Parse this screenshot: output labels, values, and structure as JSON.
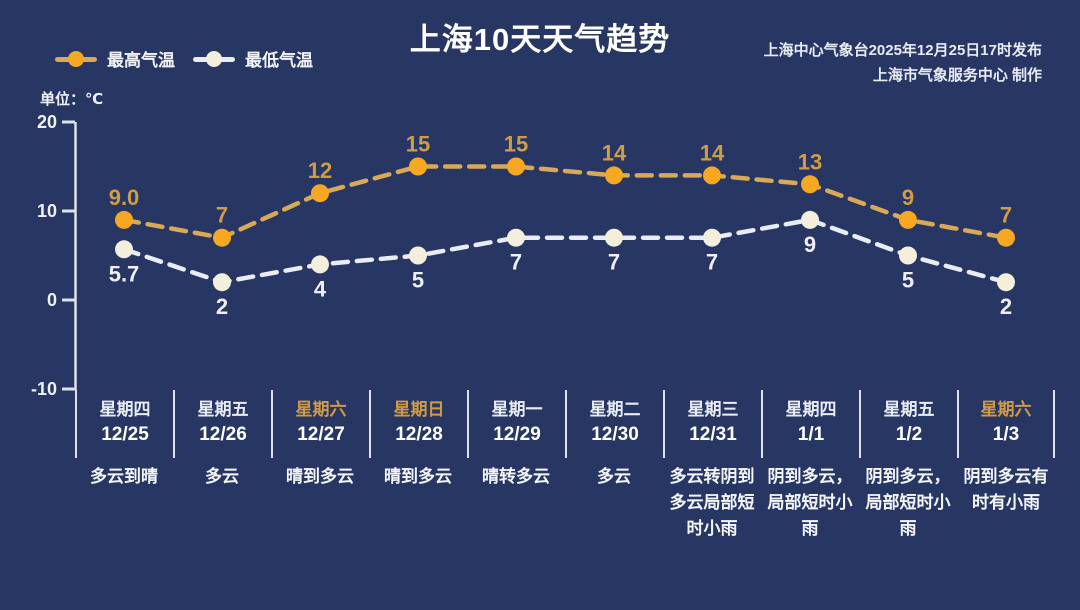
{
  "title": "上海10天天气趋势",
  "credits": {
    "line1": "上海中心气象台2025年12月25日17时发布",
    "line2": "上海市气象服务中心  制作"
  },
  "unit_label": "单位：℃",
  "legend": [
    {
      "label": "最高气温",
      "line_color": "#d8a958",
      "dot_color": "#f7a823"
    },
    {
      "label": "最低气温",
      "line_color": "#e9ecf2",
      "dot_color": "#f4eedd"
    }
  ],
  "colors": {
    "background": "#273663",
    "axis": "#dde2ee",
    "high_line": "#d8a958",
    "high_dot": "#f7a823",
    "high_label": "#cf9d45",
    "low_line": "#e9ecf2",
    "low_dot": "#f4eedd",
    "low_label": "#eef0f5",
    "weekend_text": "#d29a45"
  },
  "chart_data": {
    "type": "line",
    "title": "上海10天天气趋势",
    "ylabel": "单位：℃",
    "ylim": [
      -10,
      20
    ],
    "yticks": [
      20,
      10,
      0,
      -10
    ],
    "legend_position": "top-left",
    "grid": false,
    "categories": [
      {
        "weekday": "星期四",
        "date": "12/25",
        "weather": "多云到晴",
        "weekend": false
      },
      {
        "weekday": "星期五",
        "date": "12/26",
        "weather": "多云",
        "weekend": false
      },
      {
        "weekday": "星期六",
        "date": "12/27",
        "weather": "晴到多云",
        "weekend": true
      },
      {
        "weekday": "星期日",
        "date": "12/28",
        "weather": "晴到多云",
        "weekend": true
      },
      {
        "weekday": "星期一",
        "date": "12/29",
        "weather": "晴转多云",
        "weekend": false
      },
      {
        "weekday": "星期二",
        "date": "12/30",
        "weather": "多云",
        "weekend": false
      },
      {
        "weekday": "星期三",
        "date": "12/31",
        "weather": "多云转阴到多云局部短时小雨",
        "weekend": false
      },
      {
        "weekday": "星期四",
        "date": "1/1",
        "weather": "阴到多云，局部短时小雨",
        "weekend": false
      },
      {
        "weekday": "星期五",
        "date": "1/2",
        "weather": "阴到多云，局部短时小雨",
        "weekend": false
      },
      {
        "weekday": "星期六",
        "date": "1/3",
        "weather": "阴到多云有时有小雨",
        "weekend": true
      }
    ],
    "series": [
      {
        "name": "最高气温",
        "values": [
          9.0,
          7,
          12,
          15,
          15,
          14,
          14,
          13,
          9,
          7
        ],
        "labels": [
          "9.0",
          "7",
          "12",
          "15",
          "15",
          "14",
          "14",
          "13",
          "9",
          "7"
        ],
        "label_side": "above"
      },
      {
        "name": "最低气温",
        "values": [
          5.7,
          2,
          4,
          5,
          7,
          7,
          7,
          9,
          5,
          2
        ],
        "labels": [
          "5.7",
          "2",
          "4",
          "5",
          "7",
          "7",
          "7",
          "9",
          "5",
          "2"
        ],
        "label_side": "below"
      }
    ]
  }
}
